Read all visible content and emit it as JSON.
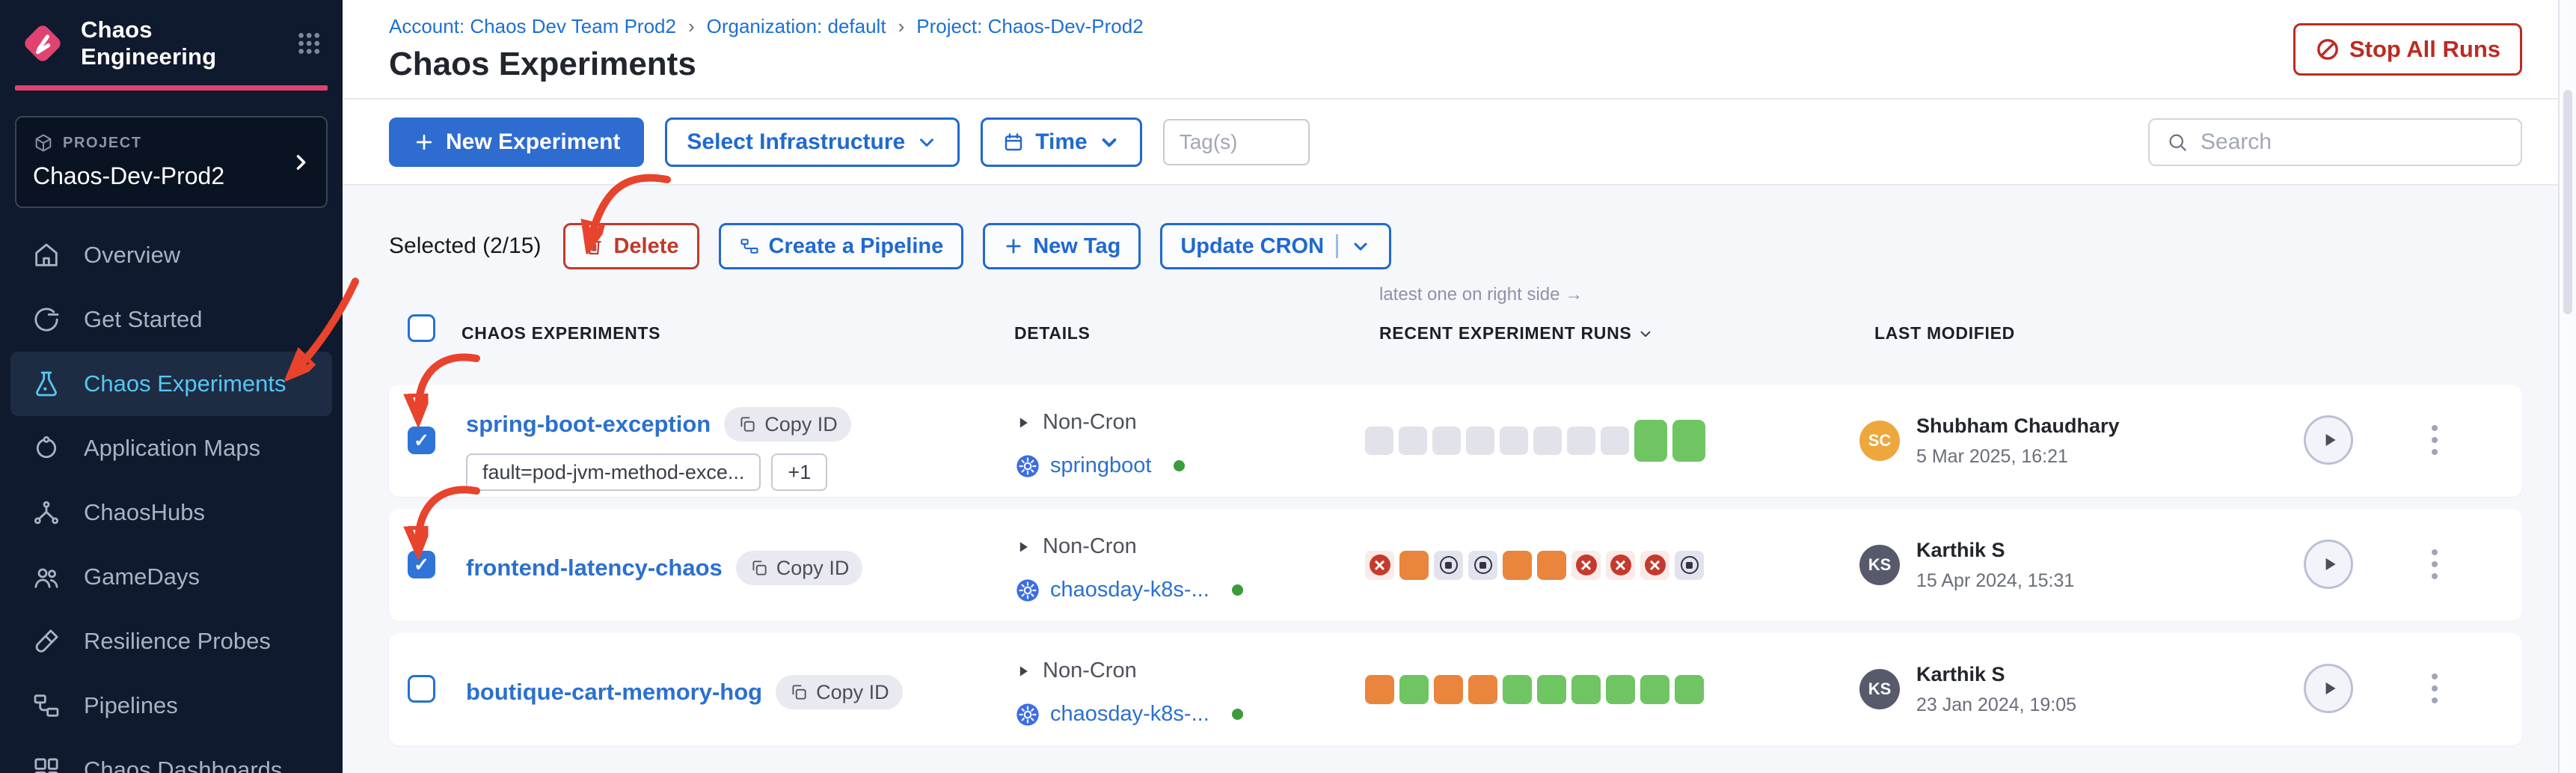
{
  "glyphs": {
    "plus": "+"
  },
  "colors": {
    "accent_pink": "#e0426d",
    "primary_blue": "#2e6cd0",
    "link_blue": "#2b70cf",
    "danger_red": "#bd2a22",
    "annotation_red": "#e8432c",
    "passed_green": "#6ec562",
    "running_orange": "#e9853c",
    "failed_red": "#c43b2e",
    "active_nav": "#56c6f2"
  },
  "sidebar": {
    "brand": "Chaos Engineering",
    "project_label": "PROJECT",
    "project_name": "Chaos-Dev-Prod2",
    "items": [
      {
        "label": "Overview"
      },
      {
        "label": "Get Started"
      },
      {
        "label": "Chaos Experiments"
      },
      {
        "label": "Application Maps"
      },
      {
        "label": "ChaosHubs"
      },
      {
        "label": "GameDays"
      },
      {
        "label": "Resilience Probes"
      },
      {
        "label": "Pipelines"
      },
      {
        "label": "Chaos Dashboards"
      }
    ]
  },
  "header": {
    "breadcrumbs": [
      "Account: Chaos Dev Team Prod2",
      "Organization: default",
      "Project: Chaos-Dev-Prod2"
    ],
    "crumb_separator": "›",
    "title": "Chaos Experiments",
    "stop_all_runs": "Stop All Runs"
  },
  "toolbar": {
    "new_experiment": "New Experiment",
    "select_infrastructure": "Select Infrastructure",
    "time": "Time",
    "tags_placeholder": "Tag(s)",
    "search_placeholder": "Search"
  },
  "selection": {
    "label": "Selected (2/15)",
    "delete": "Delete",
    "create_pipeline": "Create a Pipeline",
    "new_tag": "New Tag",
    "update_cron": "Update CRON"
  },
  "table": {
    "note": "latest one on right side →",
    "columns": [
      "CHAOS EXPERIMENTS",
      "DETAILS",
      "RECENT EXPERIMENT RUNS",
      "LAST MODIFIED"
    ],
    "copy_id_label": "Copy ID",
    "rows": [
      {
        "name": "spring-boot-exception",
        "checked": true,
        "tags": [
          "fault=pod-jvm-method-exce...",
          "+1"
        ],
        "schedule": "Non-Cron",
        "infra": "springboot",
        "runs": [
          "queued",
          "queued",
          "queued",
          "queued",
          "queued",
          "queued",
          "queued",
          "queued",
          "passed-latest",
          "passed-latest"
        ],
        "modified_by": "Shubham Chaudhary",
        "modified_at": "5 Mar 2025, 16:21",
        "initials": "SC",
        "avatar_color": "#eda73d"
      },
      {
        "name": "frontend-latency-chaos",
        "checked": true,
        "tags": [],
        "schedule": "Non-Cron",
        "infra": "chaosday-k8s-...",
        "runs": [
          "failed",
          "running",
          "stopped",
          "stopped",
          "running",
          "running",
          "failed",
          "failed",
          "failed",
          "stopped"
        ],
        "modified_by": "Karthik S",
        "modified_at": "15 Apr 2024, 15:31",
        "initials": "KS",
        "avatar_color": "#565a6b"
      },
      {
        "name": "boutique-cart-memory-hog",
        "checked": false,
        "tags": [],
        "schedule": "Non-Cron",
        "infra": "chaosday-k8s-...",
        "runs": [
          "running",
          "passed",
          "running",
          "running",
          "passed",
          "passed",
          "passed",
          "passed",
          "passed",
          "passed"
        ],
        "modified_by": "Karthik S",
        "modified_at": "23 Jan 2024, 19:05",
        "initials": "KS",
        "avatar_color": "#565a6b"
      }
    ]
  }
}
